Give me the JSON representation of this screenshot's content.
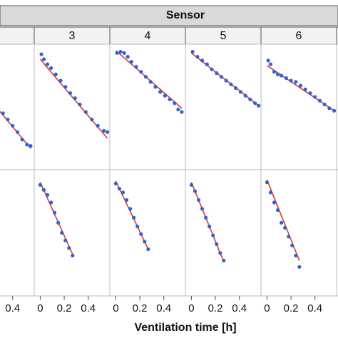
{
  "strip_title": "Sensor",
  "x_label": "Ventilation time [h]",
  "chart_data": [
    {
      "type": "scatter",
      "color": "#2d63d6",
      "fit_color": "#e8332f",
      "xlim": [
        -0.05,
        0.58
      ],
      "xticks": [
        0,
        0.2,
        0.4
      ],
      "ylim": [
        0,
        1
      ],
      "panels": [
        {
          "x": [
            0.28,
            0.32,
            0.36,
            0.4,
            0.44,
            0.48,
            0.52,
            0.55
          ],
          "y": [
            0.48,
            0.45,
            0.4,
            0.35,
            0.3,
            0.24,
            0.2,
            0.19
          ],
          "fit_x": [
            0.28,
            0.55
          ],
          "fit_y": [
            0.48,
            0.17
          ]
        }
      ]
    },
    {
      "type": "scatter",
      "label": "3",
      "color": "#2d63d6",
      "fit_color": "#e8332f",
      "xlim": [
        -0.05,
        0.58
      ],
      "xticks": [
        0,
        0.2,
        0.4
      ],
      "ylim": [
        0,
        1
      ],
      "panels": [
        {
          "x": [
            0.01,
            0.03,
            0.06,
            0.09,
            0.13,
            0.17,
            0.21,
            0.25,
            0.29,
            0.33,
            0.38,
            0.43,
            0.48,
            0.53,
            0.56
          ],
          "y": [
            0.92,
            0.88,
            0.84,
            0.81,
            0.76,
            0.71,
            0.66,
            0.61,
            0.57,
            0.52,
            0.46,
            0.4,
            0.35,
            0.31,
            0.3
          ],
          "fit_x": [
            0,
            0.56
          ],
          "fit_y": [
            0.88,
            0.25
          ]
        },
        {
          "x": [
            0,
            0.03,
            0.06,
            0.09,
            0.12,
            0.15,
            0.18,
            0.21,
            0.24,
            0.27
          ],
          "y": [
            0.88,
            0.84,
            0.8,
            0.74,
            0.66,
            0.58,
            0.5,
            0.44,
            0.38,
            0.32
          ],
          "fit_x": [
            0,
            0.27
          ],
          "fit_y": [
            0.9,
            0.33
          ]
        }
      ]
    },
    {
      "type": "scatter",
      "label": "4",
      "color": "#2d63d6",
      "fit_color": "#e8332f",
      "xlim": [
        -0.05,
        0.58
      ],
      "xticks": [
        0,
        0.2,
        0.4
      ],
      "ylim": [
        0,
        1
      ],
      "panels": [
        {
          "x": [
            0.01,
            0.04,
            0.07,
            0.1,
            0.13,
            0.17,
            0.21,
            0.25,
            0.29,
            0.33,
            0.37,
            0.41,
            0.45,
            0.49,
            0.52,
            0.55
          ],
          "y": [
            0.93,
            0.94,
            0.93,
            0.9,
            0.86,
            0.82,
            0.78,
            0.74,
            0.7,
            0.66,
            0.62,
            0.59,
            0.56,
            0.53,
            0.48,
            0.46
          ],
          "fit_x": [
            0,
            0.55
          ],
          "fit_y": [
            0.95,
            0.49
          ]
        },
        {
          "x": [
            0,
            0.03,
            0.06,
            0.09,
            0.12,
            0.15,
            0.18,
            0.21,
            0.24,
            0.27
          ],
          "y": [
            0.89,
            0.85,
            0.82,
            0.76,
            0.69,
            0.62,
            0.55,
            0.49,
            0.43,
            0.37
          ],
          "fit_x": [
            0,
            0.27
          ],
          "fit_y": [
            0.91,
            0.37
          ]
        }
      ]
    },
    {
      "type": "scatter",
      "label": "5",
      "color": "#2d63d6",
      "fit_color": "#e8332f",
      "xlim": [
        -0.05,
        0.58
      ],
      "xticks": [
        0,
        0.2,
        0.4
      ],
      "ylim": [
        0,
        1
      ],
      "panels": [
        {
          "x": [
            0.01,
            0.05,
            0.09,
            0.13,
            0.17,
            0.21,
            0.25,
            0.29,
            0.33,
            0.37,
            0.41,
            0.45,
            0.49,
            0.53,
            0.56
          ],
          "y": [
            0.94,
            0.9,
            0.87,
            0.84,
            0.8,
            0.77,
            0.74,
            0.71,
            0.68,
            0.65,
            0.62,
            0.59,
            0.56,
            0.53,
            0.51
          ],
          "fit_x": [
            0,
            0.56
          ],
          "fit_y": [
            0.93,
            0.51
          ]
        },
        {
          "x": [
            0,
            0.03,
            0.06,
            0.09,
            0.12,
            0.15,
            0.18,
            0.21,
            0.24,
            0.27
          ],
          "y": [
            0.88,
            0.83,
            0.76,
            0.69,
            0.62,
            0.55,
            0.48,
            0.41,
            0.34,
            0.28
          ],
          "fit_x": [
            0,
            0.27
          ],
          "fit_y": [
            0.9,
            0.27
          ]
        }
      ]
    },
    {
      "type": "scatter",
      "label": "6",
      "color": "#2d63d6",
      "fit_color": "#e8332f",
      "xlim": [
        -0.05,
        0.58
      ],
      "xticks": [
        0,
        0.2,
        0.4
      ],
      "ylim": [
        0,
        1
      ],
      "panels": [
        {
          "x": [
            0.01,
            0.03,
            0.06,
            0.09,
            0.12,
            0.16,
            0.2,
            0.24,
            0.28,
            0.32,
            0.36,
            0.4,
            0.44,
            0.48,
            0.52,
            0.56
          ],
          "y": [
            0.87,
            0.84,
            0.78,
            0.76,
            0.75,
            0.73,
            0.71,
            0.7,
            0.67,
            0.64,
            0.61,
            0.58,
            0.55,
            0.52,
            0.49,
            0.47
          ],
          "fit_x": [
            0,
            0.56
          ],
          "fit_y": [
            0.83,
            0.47
          ]
        },
        {
          "x": [
            0,
            0.03,
            0.06,
            0.09,
            0.12,
            0.15,
            0.18,
            0.21,
            0.24,
            0.27
          ],
          "y": [
            0.9,
            0.82,
            0.74,
            0.68,
            0.58,
            0.54,
            0.47,
            0.4,
            0.32,
            0.23
          ],
          "fit_x": [
            0,
            0.27
          ],
          "fit_y": [
            0.92,
            0.28
          ]
        }
      ]
    }
  ]
}
